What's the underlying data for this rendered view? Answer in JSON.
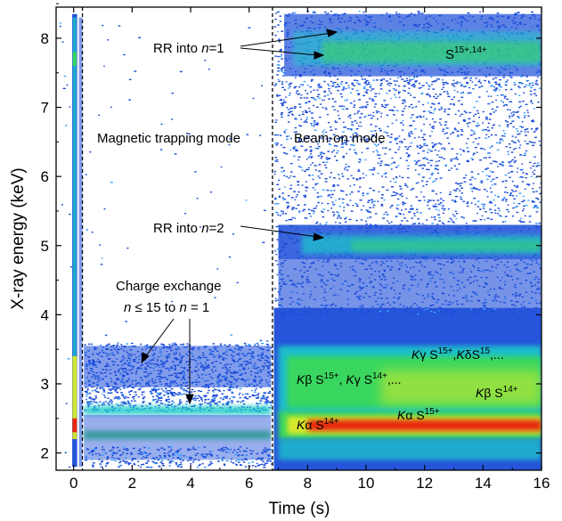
{
  "chart_data": {
    "type": "heatmap",
    "xlabel": "Time (s)",
    "ylabel": "X-ray energy (keV)",
    "xlim": [
      -0.6,
      16
    ],
    "ylim": [
      1.75,
      8.45
    ],
    "xticks": [
      0,
      2,
      4,
      6,
      8,
      10,
      12,
      14,
      16
    ],
    "yticks": [
      2,
      3,
      4,
      5,
      6,
      7,
      8
    ],
    "tick_labels_x": [
      "0",
      "2",
      "4",
      "6",
      "8",
      "10",
      "12",
      "14",
      "16"
    ],
    "tick_labels_y": [
      "2",
      "3",
      "4",
      "5",
      "6",
      "7",
      "8"
    ],
    "grid": false,
    "mode_boundaries": [
      0.3,
      6.8
    ],
    "regions": [
      {
        "label": "Magnetic trapping mode",
        "x": 3.0,
        "y": 6.55
      },
      {
        "label": "Beam-on mode",
        "x": 9.3,
        "y": 6.55
      }
    ],
    "bands": [
      {
        "name": "K-alpha",
        "x_start": 6.9,
        "x_end": 16,
        "y_center": 2.4,
        "intensity": "red"
      },
      {
        "name": "K-beta/gamma",
        "x_start": 6.9,
        "x_end": 16,
        "y_center": 2.95,
        "intensity": "yellow-green"
      },
      {
        "name": "RR n=2",
        "x_start": 6.9,
        "x_end": 16,
        "y_center": 5.0,
        "intensity": "green"
      },
      {
        "name": "RR n=1",
        "x_start": 6.9,
        "x_end": 16,
        "y_center": 7.8,
        "intensity": "green"
      },
      {
        "name": "CX low",
        "x_start": 0.3,
        "x_end": 6.8,
        "y_center": 2.25,
        "intensity": "green"
      },
      {
        "name": "CX high",
        "x_start": 0.3,
        "x_end": 6.8,
        "y_center": 2.55,
        "intensity": "green"
      }
    ],
    "annotations": {
      "rr_n1": {
        "prefix": "RR into ",
        "italic": "n",
        "suffix": "=1"
      },
      "s_high": {
        "base": "S",
        "sup": "15+,14+"
      },
      "mag_mode": "Magnetic trapping mode",
      "beam_mode": "Beam-on mode",
      "rr_n2": {
        "prefix": "RR into ",
        "italic": "n",
        "suffix": "=2"
      },
      "cx_line1": "Charge exchange",
      "cx_line2": {
        "a": "n",
        "b": " ≤ 15 to ",
        "c": "n",
        "d": " = 1"
      },
      "kgamma_line": {
        "k1": "K",
        "g1": "γ",
        "s1": " S",
        "sup1": "15+",
        "sep": ",",
        "k2": "K",
        "d2": "δ",
        "s2": "S",
        "sup2": "15",
        "tail": ",..."
      },
      "kbeta_line": {
        "k1": "K",
        "b1": "β",
        "s1": " S",
        "sup1": "15+",
        "sep": ", ",
        "k2": "K",
        "g2": "γ",
        "s2": " S",
        "sup2": "14+",
        "tail": ",..."
      },
      "kbeta14": {
        "k": "K",
        "b": "β",
        "s": " S",
        "sup": "14+"
      },
      "kalpha14": {
        "k": "K",
        "a": "α",
        "s": " S",
        "sup": "14+"
      },
      "kalpha15": {
        "k": "K",
        "a": "α",
        "s": " S",
        "sup": "15+"
      }
    },
    "colors": {
      "low": "#1a4bd8",
      "mid": "#1fc9c9",
      "green": "#3ad95a",
      "yellow": "#d8e82a",
      "high": "#e81c10"
    }
  }
}
